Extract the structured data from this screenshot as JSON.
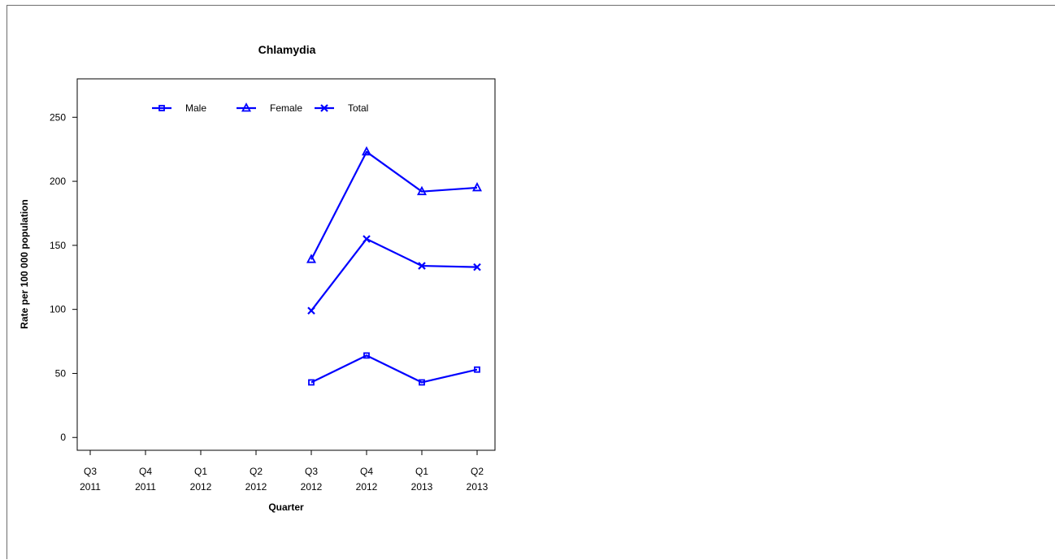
{
  "chart_data": {
    "type": "line",
    "title": "Chlamydia",
    "xlabel": "Quarter",
    "ylabel": "Rate per 100 000 population",
    "categories": [
      [
        "Q3",
        "2011"
      ],
      [
        "Q4",
        "2011"
      ],
      [
        "Q1",
        "2012"
      ],
      [
        "Q2",
        "2012"
      ],
      [
        "Q3",
        "2012"
      ],
      [
        "Q4",
        "2012"
      ],
      [
        "Q1",
        "2013"
      ],
      [
        "Q2",
        "2013"
      ]
    ],
    "ylim": [
      -10,
      280
    ],
    "yticks": [
      0,
      50,
      100,
      150,
      200,
      250
    ],
    "grid": false,
    "legend_position": "top",
    "color": "#0000ff",
    "series": [
      {
        "name": "Male",
        "marker": "square",
        "values": [
          null,
          null,
          null,
          null,
          43,
          64,
          43,
          53
        ]
      },
      {
        "name": "Female",
        "marker": "triangle",
        "values": [
          null,
          null,
          null,
          null,
          139,
          223,
          192,
          195
        ]
      },
      {
        "name": "Total",
        "marker": "cross",
        "values": [
          null,
          null,
          null,
          null,
          99,
          155,
          134,
          133
        ]
      }
    ]
  }
}
